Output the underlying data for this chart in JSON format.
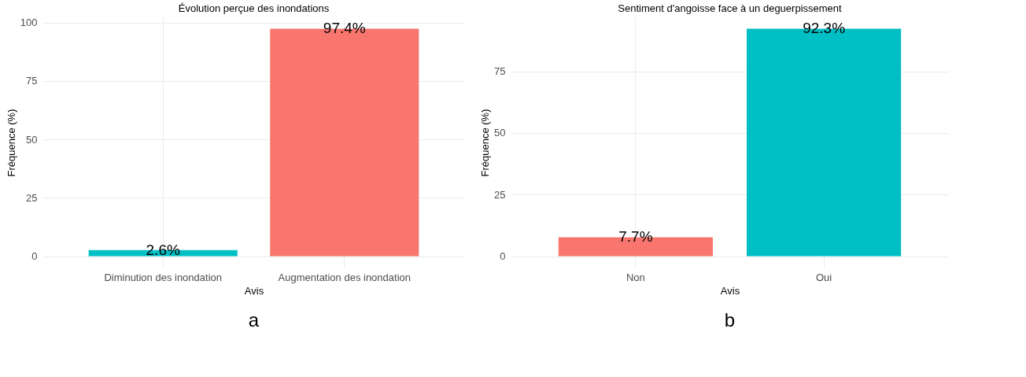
{
  "chart_data": [
    {
      "type": "bar",
      "title": "Évolution perçue des inondations",
      "xlabel": "Avis",
      "ylabel": "Fréquence (%)",
      "categories": [
        "Diminution des inondation",
        "Augmentation des inondation"
      ],
      "values": [
        2.6,
        97.4
      ],
      "colors": [
        "#00bfc4",
        "#f8766d"
      ],
      "value_labels": [
        "2.6%",
        "97.4%"
      ],
      "ylim": [
        -4.87,
        102.27
      ],
      "yticks": [
        0,
        25,
        50,
        75,
        100
      ],
      "grid": true,
      "annotations": [
        "a"
      ]
    },
    {
      "type": "bar",
      "title": "Sentiment d'angoisse face à un deguerpissement",
      "xlabel": "Avis",
      "ylabel": "Fréquence (%)",
      "categories": [
        "Non",
        "Oui"
      ],
      "values": [
        7.7,
        92.3
      ],
      "colors": [
        "#f8766d",
        "#00bfc4"
      ],
      "value_labels": [
        "7.7%",
        "92.3%"
      ],
      "ylim": [
        -4.615,
        96.915
      ],
      "yticks": [
        0,
        25,
        50,
        75
      ],
      "grid": true,
      "annotations": [
        "b"
      ]
    }
  ]
}
